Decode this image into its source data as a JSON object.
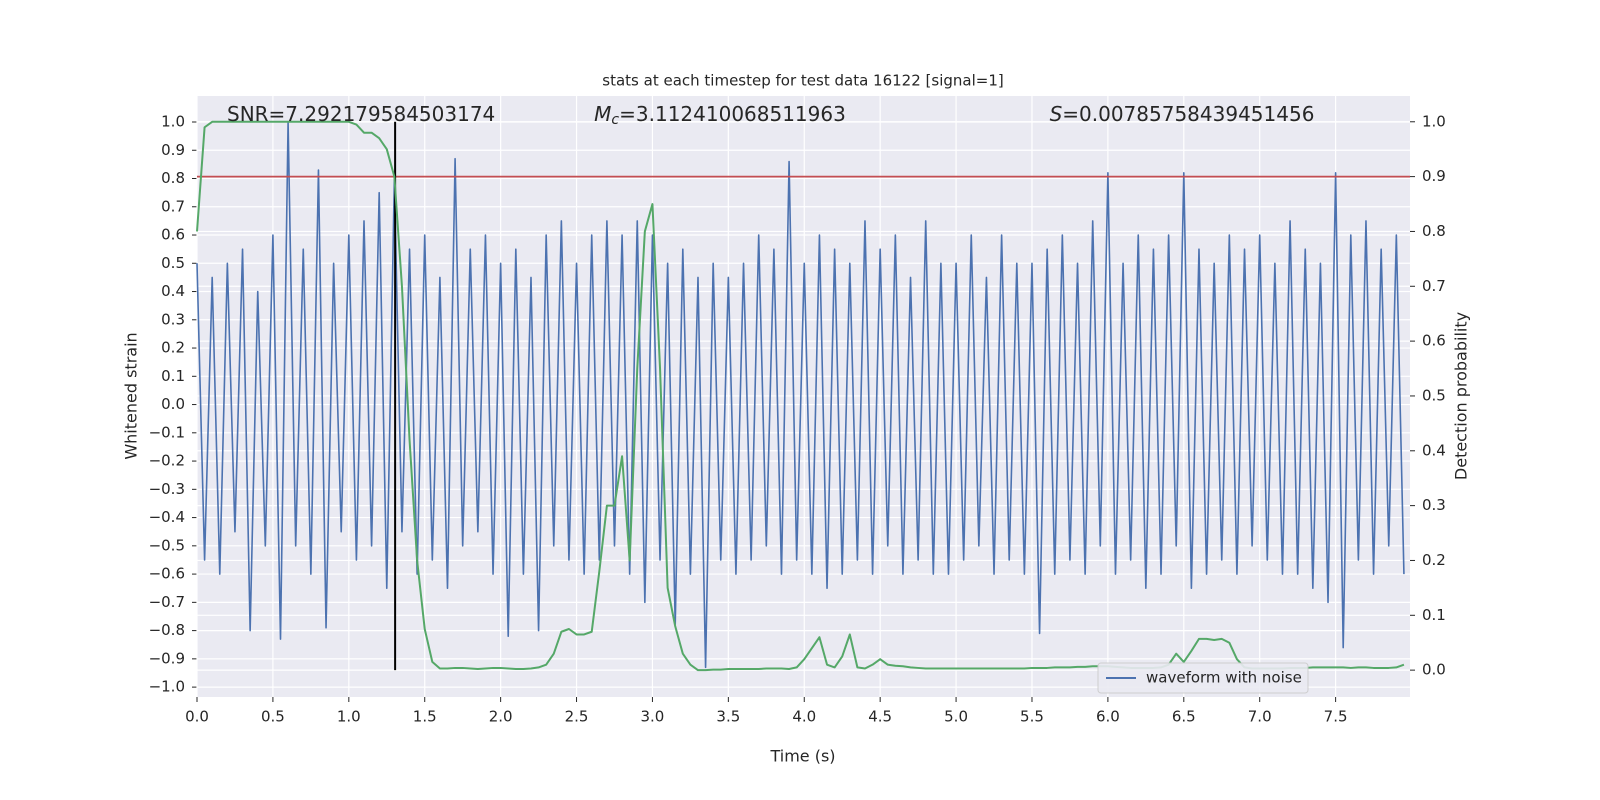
{
  "chart_data": {
    "type": "line",
    "title": "stats at each timestep for test data 16122 [signal=1]",
    "x_label": "Time (s)",
    "y_label": "Whitened strain",
    "y2_label": "Detection probability",
    "annotations": [
      {
        "text": "SNR=7.292179584503174"
      },
      {
        "symbol": "M",
        "subscript": "c",
        "text": "=3.112410068511963"
      },
      {
        "symbol": "S",
        "text": "=0.00785758439451456"
      }
    ],
    "legend": "lower right",
    "grid": true,
    "xlim": [
      0,
      7.99
    ],
    "ylim": [
      -1.035,
      1.092
    ],
    "y2lim": [
      -0.049,
      1.047
    ],
    "xticks": [
      {
        "value": 0,
        "label": "0.0"
      },
      {
        "value": 0.5,
        "label": "0.5"
      },
      {
        "value": 1,
        "label": "1.0"
      },
      {
        "value": 1.5,
        "label": "1.5"
      },
      {
        "value": 2,
        "label": "2.0"
      },
      {
        "value": 2.5,
        "label": "2.5"
      },
      {
        "value": 3,
        "label": "3.0"
      },
      {
        "value": 3.5,
        "label": "3.5"
      },
      {
        "value": 4,
        "label": "4.0"
      },
      {
        "value": 4.5,
        "label": "4.5"
      },
      {
        "value": 5,
        "label": "5.0"
      },
      {
        "value": 5.5,
        "label": "5.5"
      },
      {
        "value": 6,
        "label": "6.0"
      },
      {
        "value": 6.5,
        "label": "6.5"
      },
      {
        "value": 7,
        "label": "7.0"
      },
      {
        "value": 7.5,
        "label": "7.5"
      }
    ],
    "yticks": [
      {
        "value": -1,
        "label": "−1.0"
      },
      {
        "value": -0.9,
        "label": "−0.9"
      },
      {
        "value": -0.8,
        "label": "−0.8"
      },
      {
        "value": -0.7,
        "label": "−0.7"
      },
      {
        "value": -0.6,
        "label": "−0.6"
      },
      {
        "value": -0.5,
        "label": "−0.5"
      },
      {
        "value": -0.4,
        "label": "−0.4"
      },
      {
        "value": -0.3,
        "label": "−0.3"
      },
      {
        "value": -0.2,
        "label": "−0.2"
      },
      {
        "value": -0.1,
        "label": "−0.1"
      },
      {
        "value": 0,
        "label": "0.0"
      },
      {
        "value": 0.1,
        "label": "0.1"
      },
      {
        "value": 0.2,
        "label": "0.2"
      },
      {
        "value": 0.3,
        "label": "0.3"
      },
      {
        "value": 0.4,
        "label": "0.4"
      },
      {
        "value": 0.5,
        "label": "0.5"
      },
      {
        "value": 0.6,
        "label": "0.6"
      },
      {
        "value": 0.7,
        "label": "0.7"
      },
      {
        "value": 0.8,
        "label": "0.8"
      },
      {
        "value": 0.9,
        "label": "0.9"
      },
      {
        "value": 1,
        "label": "1.0"
      }
    ],
    "y2ticks": [
      {
        "value": 0,
        "label": "0.0"
      },
      {
        "value": 0.1,
        "label": "0.1"
      },
      {
        "value": 0.2,
        "label": "0.2"
      },
      {
        "value": 0.3,
        "label": "0.3"
      },
      {
        "value": 0.4,
        "label": "0.4"
      },
      {
        "value": 0.5,
        "label": "0.5"
      },
      {
        "value": 0.6,
        "label": "0.6"
      },
      {
        "value": 0.7,
        "label": "0.7"
      },
      {
        "value": 0.8,
        "label": "0.8"
      },
      {
        "value": 0.9,
        "label": "0.9"
      },
      {
        "value": 1,
        "label": "1.0"
      }
    ],
    "threshold": 0.9,
    "threshold_color": "#c44e52",
    "detection_time": 1.305,
    "detection_color": "#000000",
    "x": [
      0,
      0.05,
      0.1,
      0.15,
      0.2,
      0.25,
      0.3,
      0.35,
      0.4,
      0.45,
      0.5,
      0.55,
      0.6,
      0.65,
      0.7,
      0.75,
      0.8,
      0.85,
      0.9,
      0.95,
      1,
      1.05,
      1.1,
      1.15,
      1.2,
      1.25,
      1.3,
      1.35,
      1.4,
      1.45,
      1.5,
      1.55,
      1.6,
      1.65,
      1.7,
      1.75,
      1.8,
      1.85,
      1.9,
      1.95,
      2,
      2.05,
      2.1,
      2.15,
      2.2,
      2.25,
      2.3,
      2.35,
      2.4,
      2.45,
      2.5,
      2.55,
      2.6,
      2.65,
      2.7,
      2.75,
      2.8,
      2.85,
      2.9,
      2.95,
      3,
      3.05,
      3.1,
      3.15,
      3.2,
      3.25,
      3.3,
      3.35,
      3.4,
      3.45,
      3.5,
      3.55,
      3.6,
      3.65,
      3.7,
      3.75,
      3.8,
      3.85,
      3.9,
      3.95,
      4,
      4.05,
      4.1,
      4.15,
      4.2,
      4.25,
      4.3,
      4.35,
      4.4,
      4.45,
      4.5,
      4.55,
      4.6,
      4.65,
      4.7,
      4.75,
      4.8,
      4.85,
      4.9,
      4.95,
      5,
      5.05,
      5.1,
      5.15,
      5.2,
      5.25,
      5.3,
      5.35,
      5.4,
      5.45,
      5.5,
      5.55,
      5.6,
      5.65,
      5.7,
      5.75,
      5.8,
      5.85,
      5.9,
      5.95,
      6,
      6.05,
      6.1,
      6.15,
      6.2,
      6.25,
      6.3,
      6.35,
      6.4,
      6.45,
      6.5,
      6.55,
      6.6,
      6.65,
      6.7,
      6.75,
      6.8,
      6.85,
      6.9,
      6.95,
      7,
      7.05,
      7.1,
      7.15,
      7.2,
      7.25,
      7.3,
      7.35,
      7.4,
      7.45,
      7.5,
      7.55,
      7.6,
      7.65,
      7.7,
      7.75,
      7.8,
      7.85,
      7.9,
      7.95
    ],
    "series": [
      {
        "name": "waveform with noise",
        "color": "#4c72b0",
        "values": [
          0.5,
          -0.55,
          0.45,
          -0.6,
          0.5,
          -0.45,
          0.55,
          -0.8,
          0.4,
          -0.5,
          0.6,
          -0.83,
          1.0,
          -0.5,
          0.55,
          -0.6,
          0.83,
          -0.79,
          0.5,
          -0.45,
          0.6,
          -0.55,
          0.65,
          -0.5,
          0.75,
          -0.65,
          0.8,
          -0.45,
          0.55,
          -0.6,
          0.6,
          -0.55,
          0.45,
          -0.65,
          0.87,
          -0.5,
          0.55,
          -0.45,
          0.6,
          -0.6,
          0.5,
          -0.82,
          0.55,
          -0.6,
          0.45,
          -0.8,
          0.6,
          -0.5,
          0.65,
          -0.55,
          0.5,
          -0.6,
          0.6,
          -0.55,
          0.65,
          -0.5,
          0.6,
          -0.6,
          0.65,
          -0.7,
          0.6,
          -0.55,
          0.5,
          -0.78,
          0.55,
          -0.6,
          0.45,
          -0.93,
          0.5,
          -0.55,
          0.45,
          -0.6,
          0.5,
          -0.55,
          0.6,
          -0.5,
          0.55,
          -0.6,
          0.86,
          -0.55,
          0.5,
          -0.6,
          0.6,
          -0.65,
          0.55,
          -0.6,
          0.5,
          -0.55,
          0.65,
          -0.6,
          0.55,
          -0.5,
          0.6,
          -0.6,
          0.45,
          -0.55,
          0.65,
          -0.6,
          0.5,
          -0.6,
          0.5,
          -0.55,
          0.6,
          -0.5,
          0.45,
          -0.6,
          0.6,
          -0.55,
          0.5,
          -0.6,
          0.5,
          -0.81,
          0.55,
          -0.6,
          0.6,
          -0.55,
          0.5,
          -0.6,
          0.65,
          -0.5,
          0.82,
          -0.6,
          0.5,
          -0.55,
          0.6,
          -0.65,
          0.55,
          -0.6,
          0.6,
          -0.5,
          0.82,
          -0.65,
          0.55,
          -0.6,
          0.5,
          -0.55,
          0.6,
          -0.6,
          0.55,
          -0.5,
          0.6,
          -0.55,
          0.5,
          -0.6,
          0.65,
          -0.6,
          0.55,
          -0.65,
          0.5,
          -0.7,
          0.82,
          -0.86,
          0.6,
          -0.55,
          0.65,
          -0.6,
          0.55,
          -0.5,
          0.6,
          -0.6
        ]
      },
      {
        "color": "#55a868",
        "axis": "y2",
        "values": [
          0.8,
          0.99,
          1.0,
          1.0,
          1.0,
          1.0,
          1.0,
          1.0,
          1.0,
          1.0,
          1.0,
          1.0,
          1.0,
          1.0,
          1.0,
          1.0,
          1.0,
          1.0,
          1.0,
          1.0,
          1.0,
          0.995,
          0.98,
          0.98,
          0.97,
          0.95,
          0.9,
          0.7,
          0.42,
          0.2,
          0.075,
          0.015,
          0.003,
          0.003,
          0.004,
          0.004,
          0.003,
          0.002,
          0.003,
          0.004,
          0.004,
          0.003,
          0.002,
          0.002,
          0.003,
          0.005,
          0.01,
          0.03,
          0.07,
          0.075,
          0.065,
          0.065,
          0.07,
          0.18,
          0.3,
          0.3,
          0.39,
          0.2,
          0.55,
          0.8,
          0.85,
          0.55,
          0.15,
          0.08,
          0.03,
          0.01,
          0.0,
          0.0,
          0.001,
          0.001,
          0.002,
          0.002,
          0.002,
          0.002,
          0.002,
          0.003,
          0.003,
          0.003,
          0.002,
          0.005,
          0.02,
          0.04,
          0.06,
          0.01,
          0.005,
          0.025,
          0.065,
          0.005,
          0.003,
          0.01,
          0.02,
          0.01,
          0.008,
          0.007,
          0.005,
          0.004,
          0.003,
          0.003,
          0.003,
          0.003,
          0.003,
          0.003,
          0.003,
          0.003,
          0.003,
          0.003,
          0.003,
          0.003,
          0.003,
          0.003,
          0.004,
          0.004,
          0.004,
          0.005,
          0.005,
          0.005,
          0.006,
          0.006,
          0.007,
          0.007,
          0.007,
          0.006,
          0.005,
          0.004,
          0.004,
          0.004,
          0.004,
          0.005,
          0.01,
          0.03,
          0.015,
          0.035,
          0.057,
          0.057,
          0.055,
          0.057,
          0.05,
          0.02,
          0.005,
          0.003,
          0.003,
          0.003,
          0.003,
          0.003,
          0.004,
          0.004,
          0.004,
          0.005,
          0.005,
          0.005,
          0.005,
          0.005,
          0.004,
          0.005,
          0.005,
          0.004,
          0.004,
          0.004,
          0.005,
          0.01
        ]
      }
    ]
  }
}
